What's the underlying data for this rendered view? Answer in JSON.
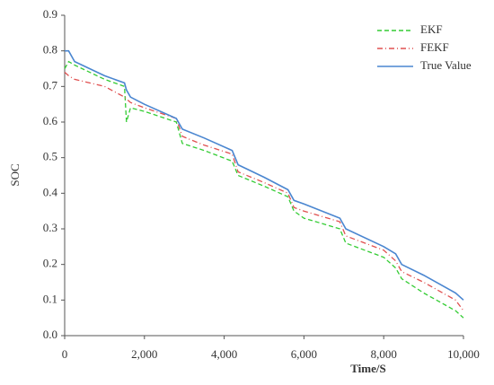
{
  "chart_data": {
    "type": "line",
    "x_label": "Time/S",
    "y_label": "SOC",
    "x": [
      0,
      100,
      250,
      1000,
      1500,
      1550,
      1650,
      2000,
      2800,
      2950,
      3500,
      4200,
      4350,
      5000,
      5600,
      5750,
      6000,
      6900,
      7050,
      8000,
      8300,
      8450,
      9000,
      9800,
      10000
    ],
    "series": [
      {
        "name": "EKF",
        "color": "#33cc33",
        "linestyle": "dashed",
        "values": [
          0.75,
          0.77,
          0.76,
          0.72,
          0.7,
          0.6,
          0.64,
          0.63,
          0.6,
          0.54,
          0.52,
          0.49,
          0.45,
          0.42,
          0.39,
          0.35,
          0.33,
          0.3,
          0.26,
          0.22,
          0.19,
          0.16,
          0.12,
          0.07,
          0.05
        ]
      },
      {
        "name": "FEKF",
        "color": "#e05050",
        "linestyle": "dashdot",
        "values": [
          0.74,
          0.73,
          0.72,
          0.7,
          0.67,
          0.665,
          0.655,
          0.64,
          0.61,
          0.56,
          0.535,
          0.51,
          0.46,
          0.43,
          0.4,
          0.36,
          0.35,
          0.32,
          0.28,
          0.24,
          0.21,
          0.18,
          0.15,
          0.1,
          0.07
        ]
      },
      {
        "name": "True Value",
        "color": "#4a86d0",
        "linestyle": "solid",
        "values": [
          0.8,
          0.8,
          0.77,
          0.73,
          0.71,
          0.69,
          0.67,
          0.65,
          0.61,
          0.58,
          0.555,
          0.52,
          0.48,
          0.445,
          0.41,
          0.38,
          0.37,
          0.33,
          0.3,
          0.25,
          0.23,
          0.2,
          0.17,
          0.12,
          0.1
        ]
      }
    ],
    "xlim": [
      0,
      10000
    ],
    "xticks": [
      0,
      {
        "value": 2000,
        "label": "2,000"
      },
      {
        "value": 4000,
        "label": "4,000"
      },
      {
        "value": 6000,
        "label": "6,000"
      },
      {
        "value": 8000,
        "label": "8,000"
      },
      {
        "value": 10000,
        "label": "10,000"
      }
    ],
    "ylim": [
      0,
      0.9
    ],
    "yticks": [
      {
        "value": 0,
        "label": "0.0"
      },
      0.1,
      0.2,
      0.3,
      0.4,
      0.5,
      0.6,
      0.7,
      0.8,
      0.9
    ],
    "grid": false,
    "legend": "upper right"
  }
}
